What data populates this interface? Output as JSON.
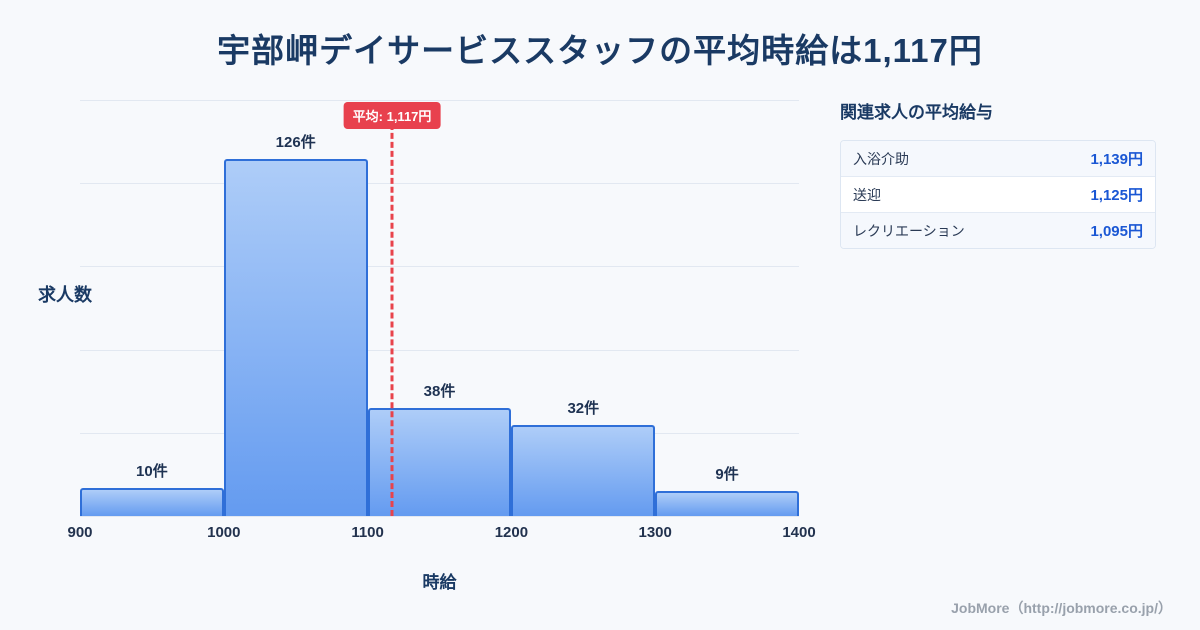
{
  "page": {
    "title": "宇部岬デイサービススタッフの平均時給は1,117円",
    "footer": "JobMore（http://jobmore.co.jp/）"
  },
  "chart_data": {
    "type": "bar",
    "title": "宇部岬デイサービススタッフの平均時給は1,117円",
    "categories": [
      "900-1000",
      "1000-1100",
      "1100-1200",
      "1200-1300",
      "1300-1400"
    ],
    "values": [
      10,
      126,
      38,
      32,
      9
    ],
    "bar_labels": [
      "10件",
      "126件",
      "38件",
      "32件",
      "9件"
    ],
    "x_ticks": [
      "900",
      "1000",
      "1100",
      "1200",
      "1300",
      "1400"
    ],
    "x_range": [
      900,
      1400
    ],
    "xlabel": "時給",
    "ylabel": "求人数",
    "ylim": [
      0,
      147
    ],
    "grid": true,
    "gridline_intervals": 5,
    "average": 1117,
    "average_label": "平均: 1,117円",
    "legend": "none",
    "colors": {
      "bar_fill_top": "#aecdf8",
      "bar_fill_bottom": "#649bf0",
      "bar_border": "#2f6fd8",
      "average_line": "#e8434b",
      "grid": "#e2e8f1",
      "text": "#1e3252"
    }
  },
  "side_panel": {
    "title": "関連求人の平均給与",
    "rows": [
      {
        "label": "入浴介助",
        "value": "1,139円"
      },
      {
        "label": "送迎",
        "value": "1,125円"
      },
      {
        "label": "レクリエーション",
        "value": "1,095円"
      }
    ],
    "value_color": "#1a57d4"
  }
}
